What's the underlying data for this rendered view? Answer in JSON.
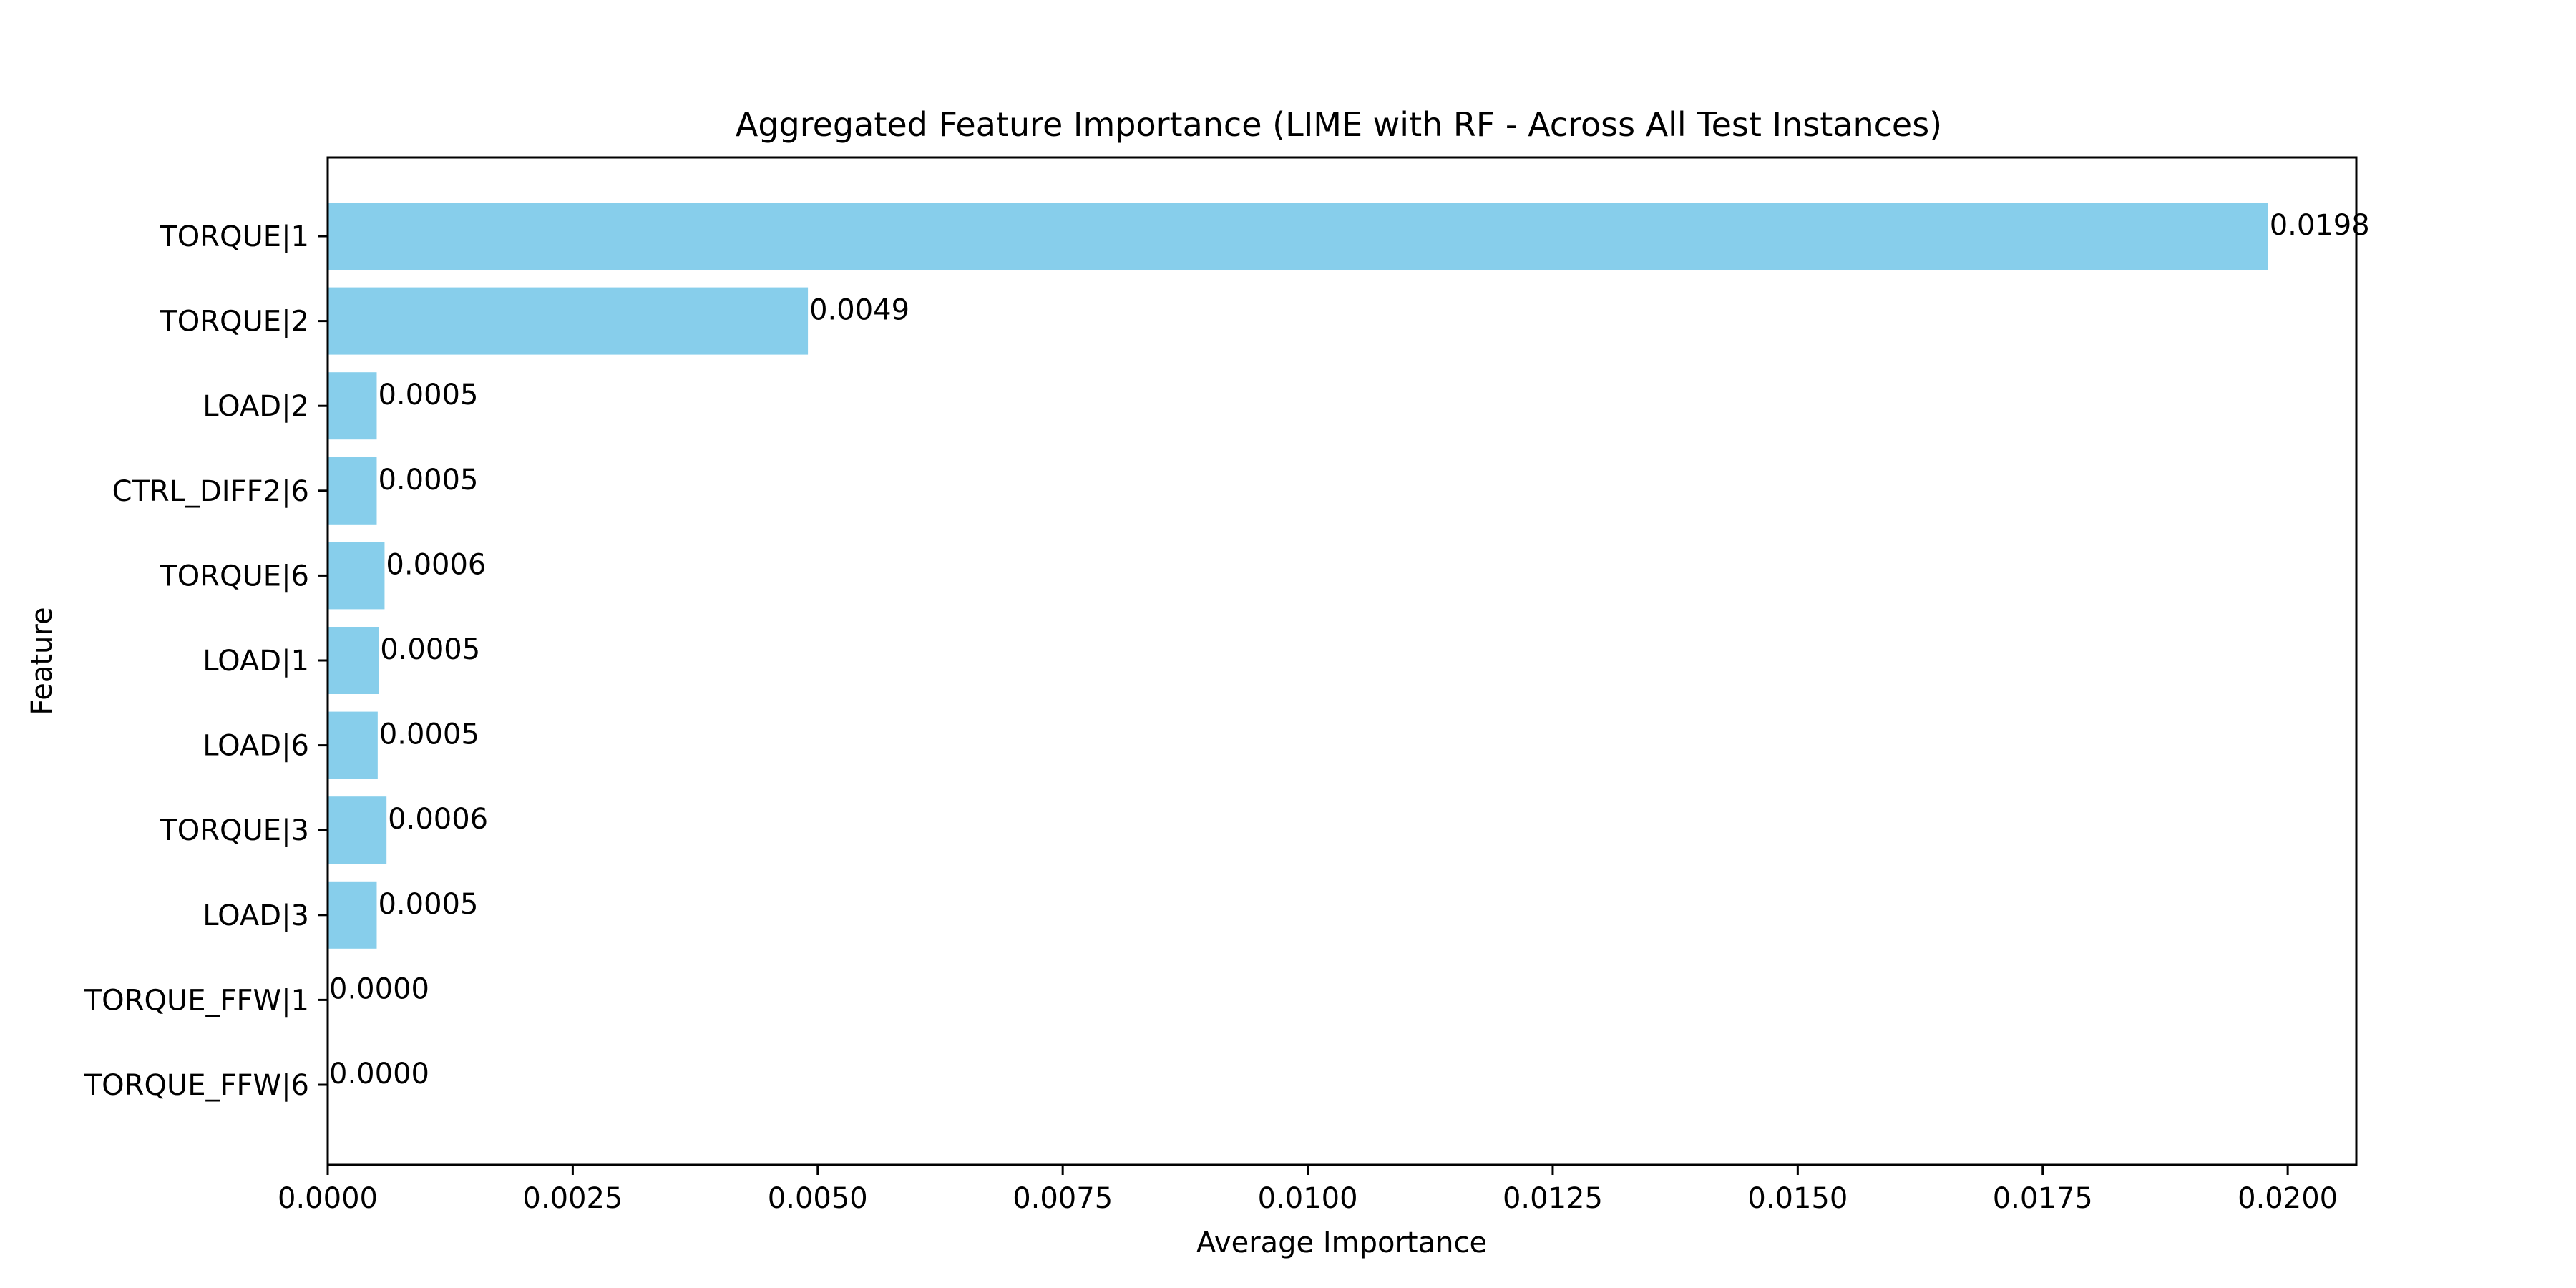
{
  "chart_data": {
    "type": "bar",
    "orientation": "horizontal",
    "title": "Aggregated Feature Importance (LIME with RF - Across All Test Instances)",
    "xlabel": "Average Importance",
    "ylabel": "Feature",
    "categories": [
      "TORQUE|1",
      "TORQUE|2",
      "LOAD|2",
      "CTRL_DIFF2|6",
      "TORQUE|6",
      "LOAD|1",
      "LOAD|6",
      "TORQUE|3",
      "LOAD|3",
      "TORQUE_FFW|1",
      "TORQUE_FFW|6"
    ],
    "values": [
      0.0198,
      0.0049,
      0.0005,
      0.0005,
      0.00058,
      0.00052,
      0.00051,
      0.0006,
      0.0005,
      0.0,
      0.0
    ],
    "data_labels": [
      "0.0198",
      "0.0049",
      "0.0005",
      "0.0005",
      "0.0006",
      "0.0005",
      "0.0005",
      "0.0006",
      "0.0005",
      "0.0000",
      "0.0000"
    ],
    "xlim": [
      0,
      0.0207
    ],
    "xticks": [
      0.0,
      0.0025,
      0.005,
      0.0075,
      0.01,
      0.0125,
      0.015,
      0.0175,
      0.02
    ],
    "xtick_labels": [
      "0.0000",
      "0.0025",
      "0.0050",
      "0.0075",
      "0.0100",
      "0.0125",
      "0.0150",
      "0.0175",
      "0.0200"
    ],
    "bar_color": "#87CEEB",
    "grid": false,
    "legend": "none"
  }
}
